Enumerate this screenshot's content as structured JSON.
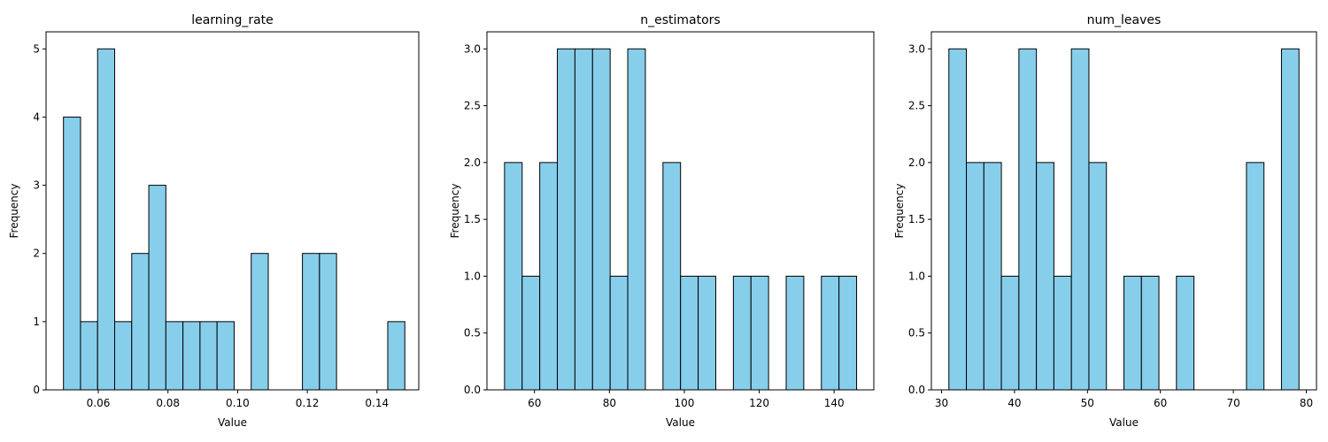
{
  "style": {
    "bar_color": "#87CEEB",
    "edge_color": "#000000",
    "background": "#ffffff"
  },
  "chart_data": [
    {
      "type": "bar",
      "title": "learning_rate",
      "xlabel": "Value",
      "ylabel": "Frequency",
      "xlim": [
        0.045,
        0.152
      ],
      "ylim": [
        0,
        5.25
      ],
      "xticks": [
        0.06,
        0.08,
        0.1,
        0.12,
        0.14
      ],
      "xtick_labels": [
        "0.06",
        "0.08",
        "0.10",
        "0.12",
        "0.14"
      ],
      "yticks": [
        0,
        1,
        2,
        3,
        4,
        5
      ],
      "ytick_labels": [
        "0",
        "1",
        "2",
        "3",
        "4",
        "5"
      ],
      "bin_edges": [
        0.05,
        0.0549,
        0.0598,
        0.0647,
        0.0696,
        0.0745,
        0.0794,
        0.0843,
        0.0892,
        0.0941,
        0.099,
        0.1039,
        0.1088,
        0.1137,
        0.1186,
        0.1235,
        0.1284,
        0.1333,
        0.1382,
        0.1431,
        0.148
      ],
      "values": [
        4,
        1,
        5,
        1,
        2,
        3,
        1,
        1,
        1,
        1,
        0,
        2,
        0,
        0,
        2,
        2,
        0,
        0,
        0,
        1
      ]
    },
    {
      "type": "bar",
      "title": "n_estimators",
      "xlabel": "Value",
      "ylabel": "Frequency",
      "xlim": [
        47.3,
        150.6
      ],
      "ylim": [
        0,
        3.15
      ],
      "xticks": [
        60,
        80,
        100,
        120,
        140
      ],
      "xtick_labels": [
        "60",
        "80",
        "100",
        "120",
        "140"
      ],
      "yticks": [
        0,
        0.5,
        1.0,
        1.5,
        2.0,
        2.5,
        3.0
      ],
      "ytick_labels": [
        "0.0",
        "0.5",
        "1.0",
        "1.5",
        "2.0",
        "2.5",
        "3.0"
      ],
      "bin_edges": [
        52.0,
        56.7,
        61.4,
        66.1,
        70.8,
        75.5,
        80.2,
        84.9,
        89.6,
        94.3,
        99.0,
        103.7,
        108.4,
        113.1,
        117.8,
        122.5,
        127.2,
        131.9,
        136.6,
        141.3,
        146.0
      ],
      "values": [
        2,
        1,
        2,
        3,
        3,
        3,
        1,
        3,
        0,
        2,
        1,
        1,
        0,
        1,
        1,
        0,
        1,
        0,
        1,
        1
      ]
    },
    {
      "type": "bar",
      "title": "num_leaves",
      "xlabel": "Value",
      "ylabel": "Frequency",
      "xlim": [
        28.6,
        81.4
      ],
      "ylim": [
        0,
        3.15
      ],
      "xticks": [
        30,
        40,
        50,
        60,
        70,
        80
      ],
      "xtick_labels": [
        "30",
        "40",
        "50",
        "60",
        "70",
        "80"
      ],
      "yticks": [
        0,
        0.5,
        1.0,
        1.5,
        2.0,
        2.5,
        3.0
      ],
      "ytick_labels": [
        "0.0",
        "0.5",
        "1.0",
        "1.5",
        "2.0",
        "2.5",
        "3.0"
      ],
      "bin_edges": [
        31.0,
        33.4,
        35.8,
        38.2,
        40.6,
        43.0,
        45.4,
        47.8,
        50.2,
        52.6,
        55.0,
        57.4,
        59.8,
        62.2,
        64.6,
        67.0,
        69.4,
        71.8,
        74.2,
        76.6,
        79.0
      ],
      "values": [
        3,
        2,
        2,
        1,
        3,
        2,
        1,
        3,
        2,
        0,
        1,
        1,
        0,
        1,
        0,
        0,
        0,
        2,
        0,
        3
      ]
    }
  ]
}
